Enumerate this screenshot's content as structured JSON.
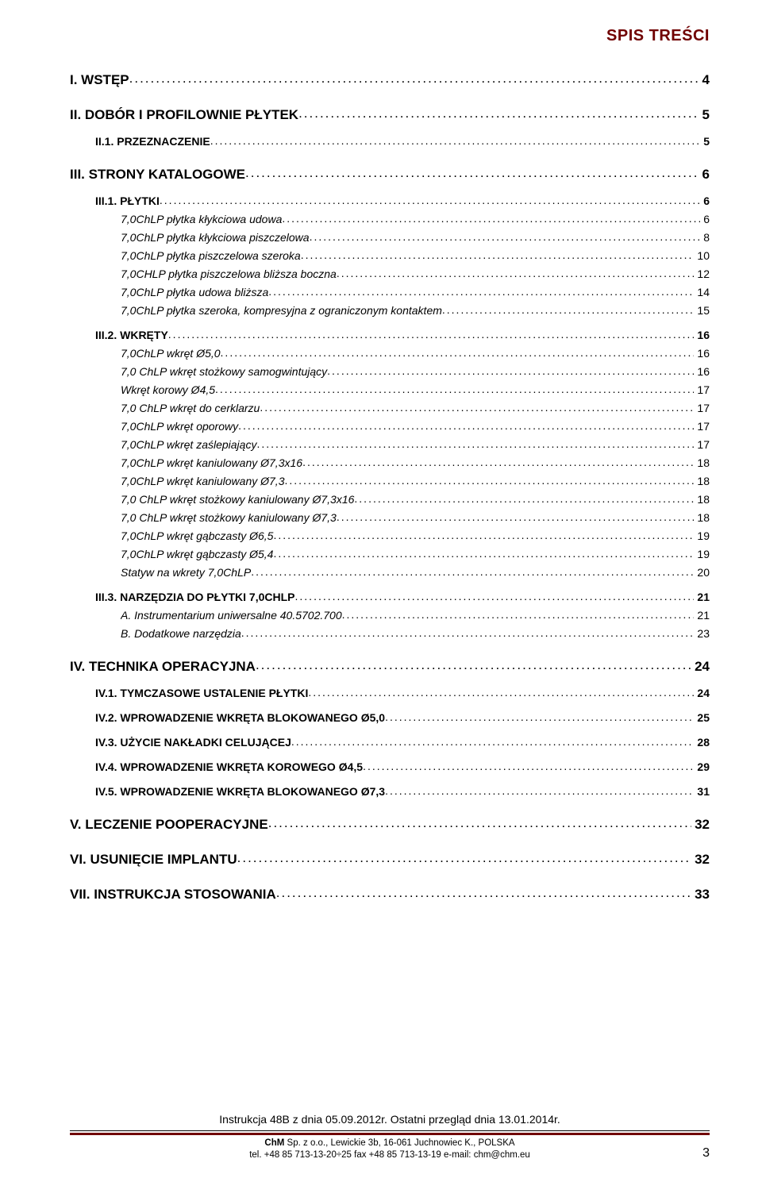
{
  "colors": {
    "accent": "#700000",
    "text": "#000000",
    "bg": "#ffffff"
  },
  "header": {
    "title": "SPIS TREŚCI"
  },
  "toc": [
    {
      "level": 1,
      "label": "I. WSTĘP",
      "page": "4"
    },
    {
      "level": 1,
      "label": "II. DOBÓR I PROFILOWNIE PŁYTEK",
      "page": "5"
    },
    {
      "level": 2,
      "label": "II.1. PRZEZNACZENIE",
      "page": "5"
    },
    {
      "level": 1,
      "label": "III. STRONY KATALOGOWE",
      "page": "6"
    },
    {
      "level": 2,
      "label": "III.1. PŁYTKI",
      "page": "6"
    },
    {
      "level": 3,
      "label": "7,0ChLP płytka kłykciowa udowa",
      "page": "6"
    },
    {
      "level": 3,
      "label": "7,0ChLP płytka kłykciowa piszczelowa",
      "page": "8"
    },
    {
      "level": 3,
      "label": "7,0ChLP płytka piszczelowa szeroka",
      "page": "10"
    },
    {
      "level": 3,
      "label": "7,0CHLP płytka piszczelowa bliższa boczna",
      "page": "12"
    },
    {
      "level": 3,
      "label": "7,0ChLP płytka udowa bliższa",
      "page": "14"
    },
    {
      "level": 3,
      "label": "7,0ChLP płytka szeroka, kompresyjna z ograniczonym kontaktem",
      "page": "15"
    },
    {
      "level": 2,
      "label": "III.2. WKRĘTY",
      "page": "16"
    },
    {
      "level": 3,
      "label": "7,0ChLP wkręt Ø5,0",
      "page": "16"
    },
    {
      "level": 3,
      "label": "7,0 ChLP wkręt stożkowy samogwintujący",
      "page": "16"
    },
    {
      "level": 3,
      "label": "Wkręt korowy Ø4,5",
      "page": "17"
    },
    {
      "level": 3,
      "label": "7,0 ChLP wkręt do cerklarzu",
      "page": "17"
    },
    {
      "level": 3,
      "label": "7,0ChLP wkręt oporowy",
      "page": "17"
    },
    {
      "level": 3,
      "label": "7,0ChLP wkręt zaślepiający",
      "page": "17"
    },
    {
      "level": 3,
      "label": "7,0ChLP wkręt kaniulowany Ø7,3x16",
      "page": "18"
    },
    {
      "level": 3,
      "label": "7,0ChLP wkręt kaniulowany Ø7,3",
      "page": "18"
    },
    {
      "level": 3,
      "label": "7,0 ChLP wkręt stożkowy kaniulowany Ø7,3x16",
      "page": "18"
    },
    {
      "level": 3,
      "label": "7,0 ChLP wkręt stożkowy kaniulowany Ø7,3",
      "page": "18"
    },
    {
      "level": 3,
      "label": "7,0ChLP wkręt gąbczasty Ø6,5",
      "page": "19"
    },
    {
      "level": 3,
      "label": "7,0ChLP wkręt gąbczasty Ø5,4",
      "page": "19"
    },
    {
      "level": 3,
      "label": "Statyw na wkrety 7,0ChLP",
      "page": "20"
    },
    {
      "level": 2,
      "label": "III.3. NARZĘDZIA DO PŁYTKI 7,0CHLP",
      "page": "21"
    },
    {
      "level": 3,
      "label": "A. Instrumentarium uniwersalne 40.5702.700",
      "page": "21"
    },
    {
      "level": 3,
      "label": "B. Dodatkowe narzędzia",
      "page": "23"
    },
    {
      "level": 1,
      "label": "IV. TECHNIKA OPERACYJNA",
      "page": "24"
    },
    {
      "level": 2,
      "label": "IV.1. TYMCZASOWE USTALENIE PŁYTKI",
      "page": "24"
    },
    {
      "level": 2,
      "label": "IV.2. WPROWADZENIE WKRĘTA BLOKOWANEGO Ø5,0",
      "page": "25"
    },
    {
      "level": 2,
      "label": "IV.3. UŻYCIE NAKŁADKI CELUJĄCEJ",
      "page": "28"
    },
    {
      "level": 2,
      "label": "IV.4. WPROWADZENIE WKRĘTA KOROWEGO Ø4,5",
      "page": "29"
    },
    {
      "level": 2,
      "label": "IV.5. WPROWADZENIE WKRĘTA BLOKOWANEGO Ø7,3",
      "page": "31"
    },
    {
      "level": 1,
      "label": "V. LECZENIE POOPERACYJNE",
      "page": "32"
    },
    {
      "level": 1,
      "label": "VI. USUNIĘCIE IMPLANTU",
      "page": "32"
    },
    {
      "level": 1,
      "label": "VII. INSTRUKCJA STOSOWANIA",
      "page": "33"
    }
  ],
  "footer": {
    "revision": "Instrukcja 48B z dnia 05.09.2012r. Ostatni przegląd dnia 13.01.2014r.",
    "company_bold": "ChM",
    "company_rest": " Sp. z o.o., Lewickie 3b, 16-061 Juchnowiec K., POLSKA",
    "contact": "tel. +48 85 713-13-20÷25   fax +48 85 713-13-19   e-mail: chm@chm.eu",
    "page_number": "3"
  }
}
